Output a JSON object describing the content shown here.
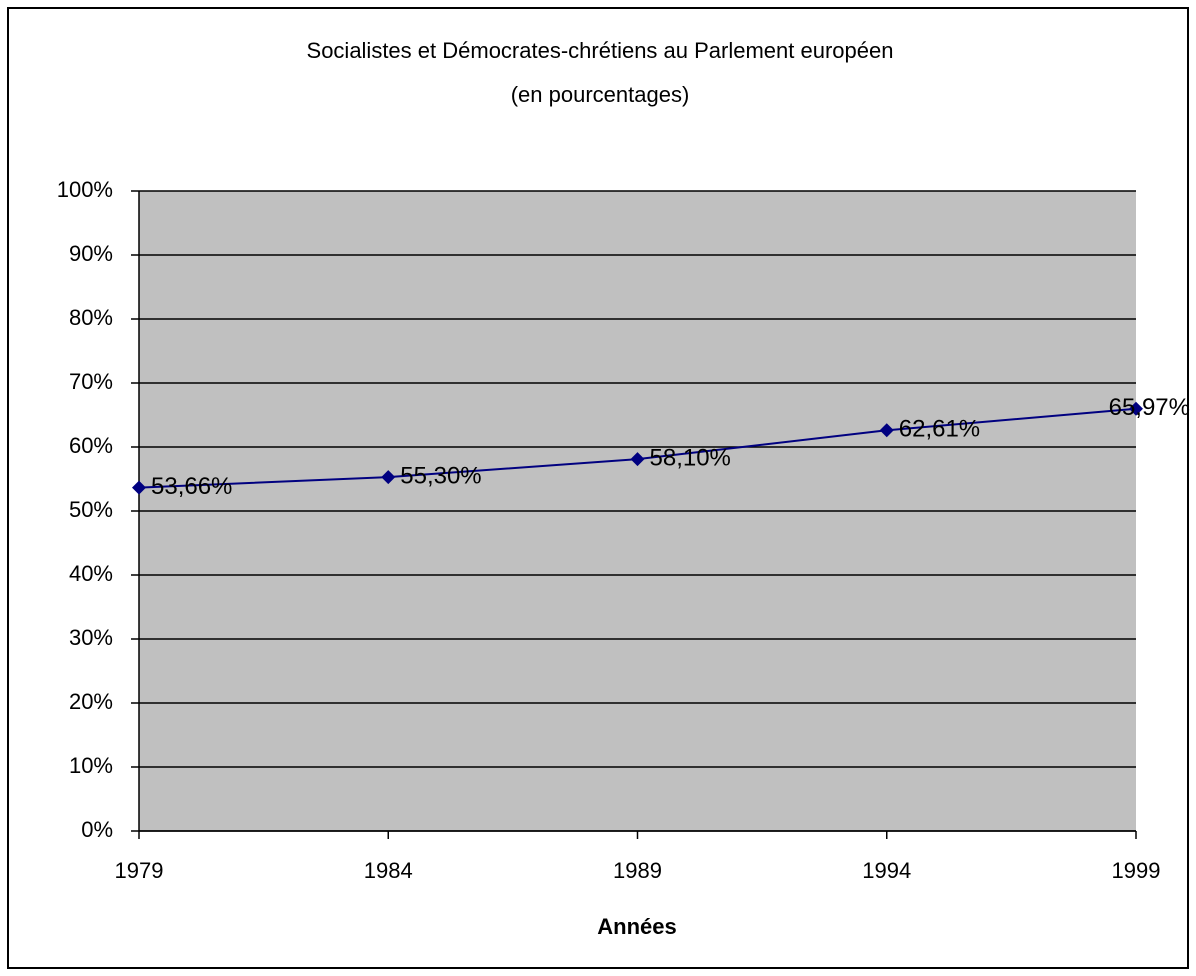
{
  "chart_data": {
    "type": "line",
    "title": "Socialistes et Démocrates-chrétiens au Parlement européen",
    "subtitle": "(en pourcentages)",
    "x_label": "Années",
    "categories": [
      "1979",
      "1984",
      "1989",
      "1994",
      "1999"
    ],
    "series": [
      {
        "name": null,
        "color": "#000080",
        "values": [
          53.66,
          55.3,
          58.1,
          62.61,
          65.97
        ],
        "value_labels": [
          "53,66%",
          "55,30%",
          "58,10%",
          "62,61%",
          "65,97%"
        ]
      }
    ],
    "ylim": [
      0,
      100
    ],
    "yticks": [
      {
        "value": 0,
        "label": "0%"
      },
      {
        "value": 10,
        "label": "10%"
      },
      {
        "value": 20,
        "label": "20%"
      },
      {
        "value": 30,
        "label": "30%"
      },
      {
        "value": 40,
        "label": "40%"
      },
      {
        "value": 50,
        "label": "50%"
      },
      {
        "value": 60,
        "label": "60%"
      },
      {
        "value": 70,
        "label": "70%"
      },
      {
        "value": 80,
        "label": "80%"
      },
      {
        "value": 90,
        "label": "90%"
      },
      {
        "value": 100,
        "label": "100%"
      }
    ],
    "grid": true,
    "plot_background": "#c0c0c0"
  }
}
